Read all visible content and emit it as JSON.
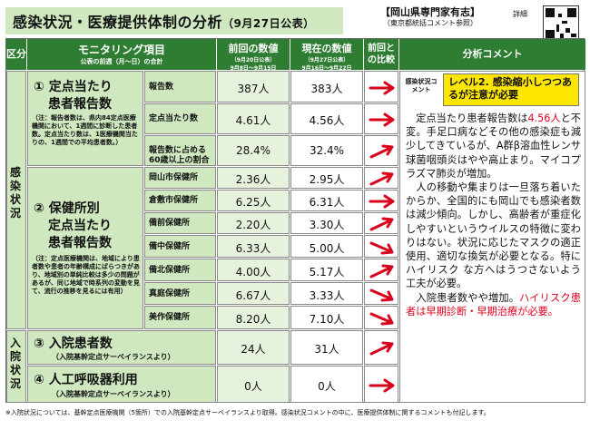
{
  "header": {
    "title": "感染状況・医療提供体制の分析",
    "date": "（9月27日公表）",
    "expert": "【岡山県専門家有志】",
    "expert_sub": "（東京都統括コメント参照）",
    "detail": "詳細"
  },
  "columns": {
    "category": "区分",
    "monitoring": "モニタリング項目",
    "monitoring_sub": "公表の前週（月～日）の合計",
    "previous": "前回の数値",
    "previous_sub1": "（9月20日公表）",
    "previous_sub2": "9月8日～9月15日",
    "current": "現在の数値",
    "current_sub1": "（9月27日公表）",
    "current_sub2": "9月16日～9月22日",
    "compare": "前回との比較",
    "comment": "分析コメント"
  },
  "categories": {
    "infection": "感染状況",
    "hospital": "入院状況"
  },
  "sections": {
    "s1_title_a": "① 定点当たり",
    "s1_title_b": "患者報告数",
    "s1_note": "（注：報告者数は、県内84定点医療機関において、1週間に診断した患者数。定点当たり数は、1医療機関当たりの、1週間での平均患者数。）",
    "s2_title_a": "② 保健所別",
    "s2_title_b": "定点当たり",
    "s2_title_c": "患者報告数",
    "s2_note": "（注：定点医療機関は、地域により患者数や患者の年齢構成にばらつきがあり、地域別の単純比較は多少の問題があるが、同じ地域で時系列の変動を見て、流行の推移を見るには有用）",
    "s3_title": "③ 入院患者数",
    "s3_note": "（入院基幹定点サーベイランスより）",
    "s4_title": "④ 人工呼吸器利用",
    "s4_note": "（入院基幹定点サーベイランスより）"
  },
  "rows": [
    {
      "label": "報告数",
      "prev": "387人",
      "curr": "383人",
      "arrow": "right"
    },
    {
      "label": "定点当たり数",
      "prev": "4.61人",
      "curr": "4.56人",
      "arrow": "right"
    },
    {
      "label": "報告数に占める60歳以上の割合",
      "prev": "28.4%",
      "curr": "32.4%",
      "arrow": "up-right"
    },
    {
      "label": "岡山市保健所",
      "prev": "2.36人",
      "curr": "2.95人",
      "arrow": "up-right"
    },
    {
      "label": "倉敷市保健所",
      "prev": "6.25人",
      "curr": "6.31人",
      "arrow": "right"
    },
    {
      "label": "備前保健所",
      "prev": "2.20人",
      "curr": "3.30人",
      "arrow": "up-right"
    },
    {
      "label": "備中保健所",
      "prev": "6.33人",
      "curr": "5.00人",
      "arrow": "down-right"
    },
    {
      "label": "備北保健所",
      "prev": "4.00人",
      "curr": "5.17人",
      "arrow": "up-right"
    },
    {
      "label": "真庭保健所",
      "prev": "6.67人",
      "curr": "3.33人",
      "arrow": "down-right"
    },
    {
      "label": "美作保健所",
      "prev": "8.20人",
      "curr": "7.10人",
      "arrow": "down-right"
    },
    {
      "label": "",
      "prev": "24人",
      "curr": "31人",
      "arrow": "up-right"
    },
    {
      "label": "",
      "prev": "0人",
      "curr": "0人",
      "arrow": "right"
    }
  ],
  "comment": {
    "label": "感染状況コメント",
    "level": "レベル2. 感染縮小しつつあるが注意が必要",
    "p1_a": "定点当たり患者報告数は",
    "p1_red": "4.56人",
    "p1_b": "と不変。手足口病などその他の感染症も減少してきているが、A群β溶血性レンサ球菌咽頭炎はやや高止まり。マイコプラズマ肺炎が増加。",
    "p2": "人の移動や集まりは一旦落ち着いたからか、全国的にも岡山でも感染者数は減少傾向。しかし、高齢者が重症化しやすいというウイルスの特徴に変わりはない。状況に応じたマスクの適正使用、適切な換気が必要となる。特にハイリスク な方へはうつさないよう工夫が必要。",
    "p3_a": "入院患者数やや増加。",
    "p3_red": "ハイリスク患者は早期診断・早期治療が必要。"
  },
  "footnote": "※入院状況については、基幹定点医療機関（5箇所）での入院基幹定点サーベイランスより取得。感染状況コメントの中に、医療提供体制に関するコメントも付記します。",
  "colors": {
    "header_green": "#2e7d32",
    "light_green": "#cfe8bf",
    "arrow_red": "#d9001b",
    "highlight_yellow": "#ffe600"
  }
}
